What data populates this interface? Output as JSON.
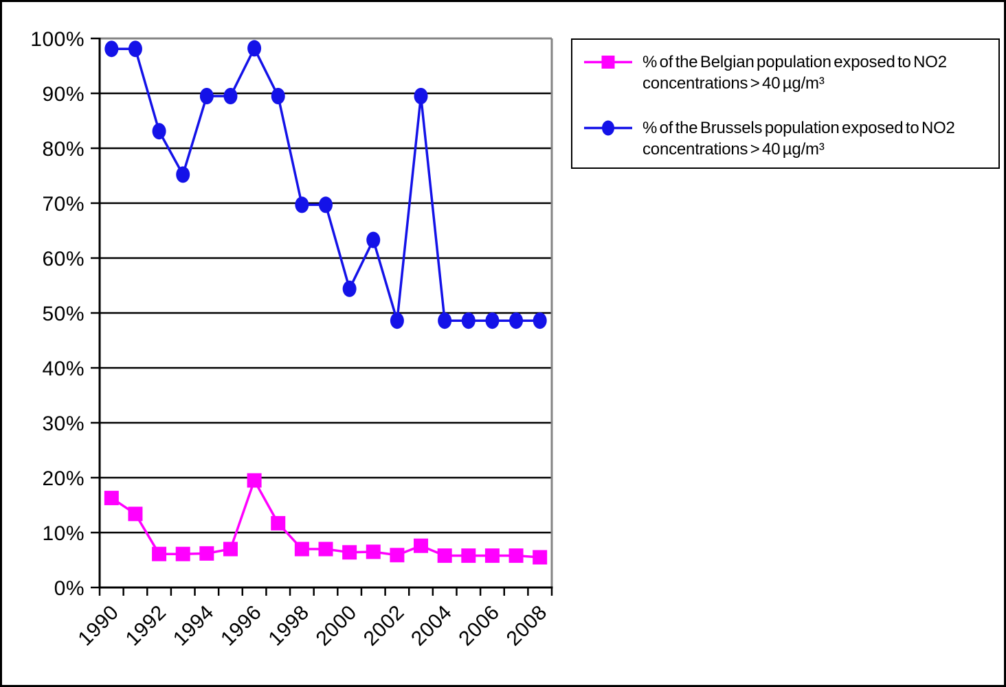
{
  "chart_data": {
    "type": "line",
    "title": "",
    "xlabel": "",
    "ylabel": "",
    "x": [
      1990,
      1991,
      1992,
      1993,
      1994,
      1995,
      1996,
      1997,
      1998,
      1999,
      2000,
      2001,
      2002,
      2003,
      2004,
      2005,
      2006,
      2007,
      2008
    ],
    "x_tick_labels": [
      "1990",
      "1992",
      "1994",
      "1996",
      "1998",
      "2000",
      "2002",
      "2004",
      "2006",
      "2008"
    ],
    "x_tick_label_every": 2,
    "y_tick_labels": [
      "0%",
      "10%",
      "20%",
      "30%",
      "40%",
      "50%",
      "60%",
      "70%",
      "80%",
      "90%",
      "100%"
    ],
    "ylim": [
      0,
      100
    ],
    "y_step": 10,
    "grid": "horizontal",
    "legend_position": "top-right",
    "series": [
      {
        "name": "% of the Belgian population exposed to NO2 concentrations > 40 µg/m³",
        "marker": "square",
        "color": "#FF00FF",
        "values": [
          16.3,
          13.4,
          6.1,
          6.1,
          6.2,
          7.0,
          19.5,
          11.7,
          7.0,
          7.0,
          6.4,
          6.5,
          5.9,
          7.6,
          5.8,
          5.8,
          5.8,
          5.8,
          5.5
        ]
      },
      {
        "name": "% of the Brussels population exposed to NO2 concentrations > 40 µg/m³",
        "marker": "circle",
        "color": "#1412E8",
        "values": [
          98.1,
          98.1,
          83.1,
          75.2,
          89.5,
          89.5,
          98.2,
          89.5,
          69.7,
          69.7,
          54.4,
          63.3,
          48.6,
          89.5,
          48.6,
          48.6,
          48.6,
          48.6,
          48.6
        ]
      }
    ],
    "colors": {
      "gridline": "#000000",
      "axis": "#000000",
      "plot_top_right_border": "#848484",
      "background": "#FFFFFF",
      "outer_border": "#000000"
    }
  }
}
